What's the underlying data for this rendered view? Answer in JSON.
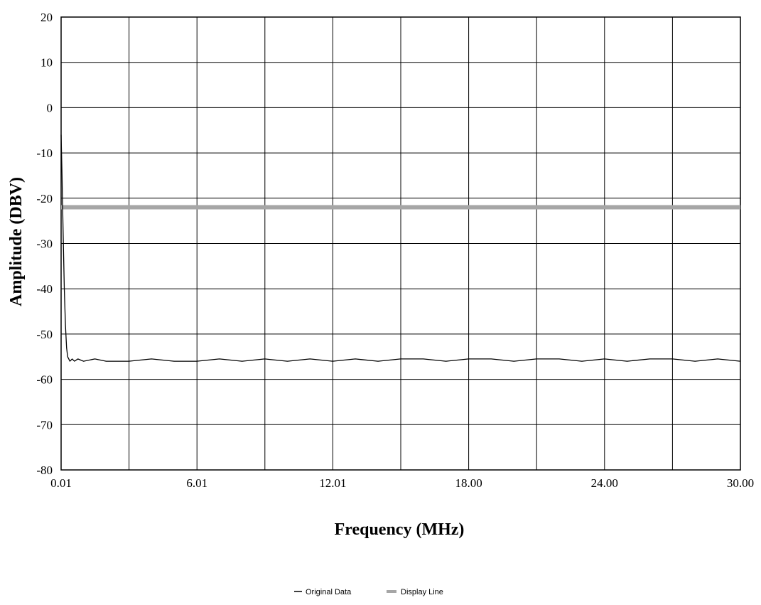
{
  "chart_data": {
    "type": "line",
    "xlabel": "Frequency (MHz)",
    "ylabel": "Amplitude (DBV)",
    "xlim": [
      0.01,
      30.0
    ],
    "ylim": [
      -80,
      20
    ],
    "x_ticks": [
      "0.01",
      "6.01",
      "12.01",
      "18.00",
      "24.00",
      "30.00"
    ],
    "y_ticks": [
      "20",
      "10",
      "0",
      "-10",
      "-20",
      "-30",
      "-40",
      "-50",
      "-60",
      "-70",
      "-80"
    ],
    "grid": true,
    "legend_position": "bottom-center",
    "series": [
      {
        "name": "Original Data",
        "color": "#000000",
        "x": [
          0.01,
          0.05,
          0.1,
          0.15,
          0.2,
          0.25,
          0.3,
          0.4,
          0.5,
          0.6,
          0.75,
          1.0,
          1.5,
          2.0,
          3.0,
          4.0,
          5.0,
          6.0,
          7.0,
          8.0,
          9.0,
          10.0,
          11.0,
          12.0,
          13.0,
          14.0,
          15.0,
          16.0,
          17.0,
          18.0,
          19.0,
          20.0,
          21.0,
          22.0,
          23.0,
          24.0,
          25.0,
          26.0,
          27.0,
          28.0,
          29.0,
          30.0
        ],
        "y": [
          -6,
          -15,
          -28,
          -40,
          -48,
          -53,
          -55,
          -56,
          -55.5,
          -56,
          -55.5,
          -56,
          -55.5,
          -56,
          -56,
          -55.5,
          -56,
          -56,
          -55.5,
          -56,
          -55.5,
          -56,
          -55.5,
          -56,
          -55.5,
          -56,
          -55.5,
          -55.5,
          -56,
          -55.5,
          -55.5,
          -56,
          -55.5,
          -55.5,
          -56,
          -55.5,
          -56,
          -55.5,
          -55.5,
          -56,
          -55.5,
          -56
        ]
      },
      {
        "name": "Display Line",
        "color": "#a6a6a6",
        "x": [
          0.01,
          30.0
        ],
        "y": [
          -22,
          -22
        ]
      }
    ]
  }
}
